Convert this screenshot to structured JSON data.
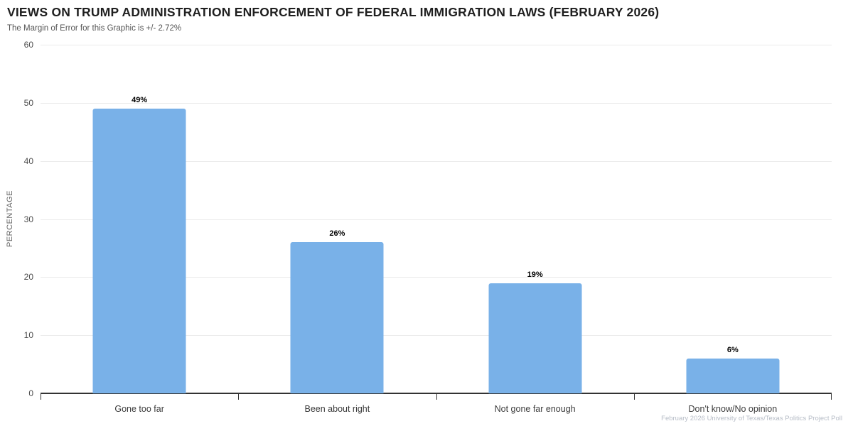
{
  "header": {
    "title": "VIEWS ON TRUMP ADMINISTRATION ENFORCEMENT OF FEDERAL IMMIGRATION LAWS (FEBRUARY 2026)",
    "subtitle": "The Margin of Error for this Graphic is +/- 2.72%"
  },
  "footer": {
    "source": "February 2026 University of Texas/Texas Politics Project Poll"
  },
  "chart_data": {
    "type": "bar",
    "title": "VIEWS ON TRUMP ADMINISTRATION ENFORCEMENT OF FEDERAL IMMIGRATION LAWS (FEBRUARY 2026)",
    "subtitle": "The Margin of Error for this Graphic is +/- 2.72%",
    "categories": [
      "Gone too far",
      "Been about right",
      "Not gone far enough",
      "Don't know/No opinion"
    ],
    "values": [
      49,
      26,
      19,
      6
    ],
    "value_labels": [
      "49%",
      "26%",
      "19%",
      "6%"
    ],
    "xlabel": "",
    "ylabel": "PERCENTAGE",
    "ylim": [
      0,
      60
    ],
    "yticks": [
      0,
      10,
      20,
      30,
      40,
      50,
      60
    ],
    "grid": "horizontal",
    "legend_position": "none",
    "source_note": "February 2026 University of Texas/Texas Politics Project Poll",
    "colors": {
      "bar": "#79B1E8",
      "axis": "#333333",
      "gridline": "#ebebeb",
      "title": "#1f1f1f",
      "subtitle": "#555555",
      "tick_label": "#4d4d4d",
      "category_label": "#3a3a3a",
      "value_label": "#000000",
      "source": "#b7bdc7"
    }
  }
}
